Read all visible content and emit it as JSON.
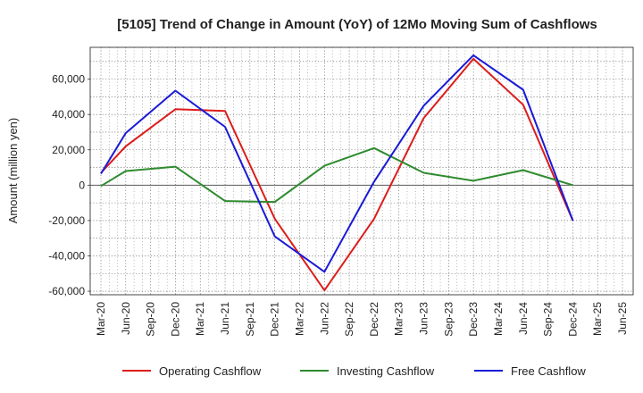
{
  "chart_data": {
    "type": "line",
    "title": "[5105]  Trend of Change in Amount (YoY) of 12Mo Moving Sum of Cashflows",
    "xlabel": "",
    "ylabel": "Amount (million yen)",
    "ylim": [
      -62000,
      78000
    ],
    "yticks": [
      60000,
      40000,
      20000,
      0,
      -20000,
      -40000,
      -60000
    ],
    "ytick_labels": [
      "60,000",
      "40,000",
      "20,000",
      "0",
      "-20,000",
      "-40,000",
      "-60,000"
    ],
    "grid": true,
    "categories": [
      "Mar-20",
      "Jun-20",
      "Sep-20",
      "Dec-20",
      "Mar-21",
      "Jun-21",
      "Sep-21",
      "Dec-21",
      "Mar-22",
      "Jun-22",
      "Sep-22",
      "Dec-22",
      "Mar-23",
      "Jun-23",
      "Sep-23",
      "Dec-23",
      "Mar-24",
      "Jun-24",
      "Sep-24",
      "Dec-24",
      "Mar-25",
      "Jun-25"
    ],
    "series": [
      {
        "name": "Operating Cashflow",
        "color": "#dd1c1c",
        "values": [
          7000,
          22000,
          null,
          43000,
          null,
          42000,
          null,
          -19000,
          null,
          -59500,
          null,
          -19000,
          null,
          38000,
          null,
          71500,
          null,
          45500,
          null,
          -20000,
          null,
          null
        ]
      },
      {
        "name": "Investing Cashflow",
        "color": "#2e8b2e",
        "values": [
          -500,
          8000,
          null,
          10500,
          null,
          -9000,
          null,
          -9500,
          null,
          11000,
          null,
          21000,
          null,
          7000,
          null,
          2500,
          null,
          8500,
          null,
          0,
          null,
          null
        ]
      },
      {
        "name": "Free Cashflow",
        "color": "#1a1ad6",
        "values": [
          6500,
          29500,
          null,
          53500,
          null,
          33000,
          null,
          -29000,
          null,
          -49000,
          null,
          2000,
          null,
          45000,
          null,
          73500,
          null,
          54000,
          null,
          -20000,
          null,
          null
        ]
      }
    ],
    "legend_position": "bottom"
  }
}
